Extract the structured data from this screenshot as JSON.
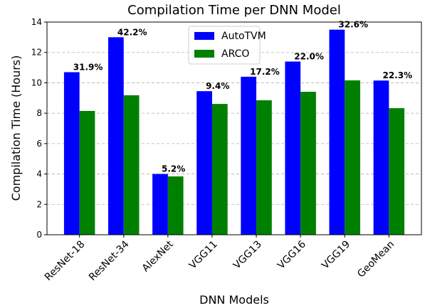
{
  "chart_data": {
    "type": "bar",
    "title": "Compilation Time per DNN Model",
    "x_label": "DNN Models",
    "y_label": "Compilation Time (Hours)",
    "categories": [
      "ResNet-18",
      "ResNet-34",
      "AlexNet",
      "VGG11",
      "VGG13",
      "VGG16",
      "VGG19",
      "GeoMean"
    ],
    "series": [
      {
        "name": "AutoTVM",
        "color": "#0000ff",
        "values": [
          10.7,
          13.0,
          4.0,
          9.45,
          10.4,
          11.4,
          13.5,
          10.15
        ]
      },
      {
        "name": "ARCO",
        "color": "#008000",
        "values": [
          8.15,
          9.18,
          3.84,
          8.61,
          8.85,
          9.41,
          10.16,
          8.33
        ]
      }
    ],
    "annotations": [
      "31.9%",
      "42.2%",
      "5.2%",
      "9.4%",
      "17.2%",
      "22.0%",
      "32.6%",
      "22.3%"
    ],
    "ylim": [
      0,
      14
    ],
    "yticks": [
      0,
      2,
      4,
      6,
      8,
      10,
      12,
      14
    ],
    "grid": true,
    "legend": "upper center"
  }
}
